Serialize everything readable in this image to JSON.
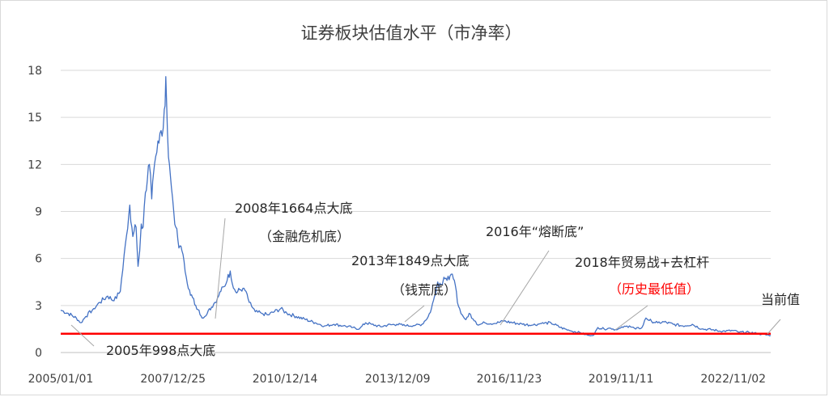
{
  "chart_data": {
    "type": "line",
    "title": "证券板块估值水平（市净率）",
    "xlabel": "",
    "ylabel": "",
    "ylim": [
      0,
      18
    ],
    "yticks": [
      "0",
      "3",
      "6",
      "9",
      "12",
      "15",
      "18"
    ],
    "x_tick_labels": [
      "2005/01/01",
      "2007/12/25",
      "2010/12/14",
      "2013/12/09",
      "2016/11/23",
      "2019/11/11",
      "2022/11/02"
    ],
    "x_range": [
      "2005/01/01",
      "2023/10/31"
    ],
    "grid": "horizontal",
    "line_color": "#4472c4",
    "baseline_color": "#ff0000",
    "baseline_value": 1.2,
    "series": [
      {
        "x": [
          "2005/01/01",
          "2005/03/15",
          "2005/06/01",
          "2005/07/15",
          "2005/09/01",
          "2005/11/15",
          "2006/01/15",
          "2006/04/01",
          "2006/06/01",
          "2006/08/01",
          "2006/10/01",
          "2006/11/01",
          "2006/12/01",
          "2007/01/01",
          "2007/01/20",
          "2007/02/05",
          "2007/02/20",
          "2007/03/10",
          "2007/04/01",
          "2007/04/20",
          "2007/05/10",
          "2007/06/01",
          "2007/06/20",
          "2007/07/10",
          "2007/08/01",
          "2007/08/20",
          "2007/09/10",
          "2007/10/01",
          "2007/10/16",
          "2007/11/01",
          "2007/11/20",
          "2007/12/10",
          "2008/01/01",
          "2008/01/20",
          "2008/02/10",
          "2008/03/01",
          "2008/03/20",
          "2008/04/10",
          "2008/05/01",
          "2008/06/01",
          "2008/07/01",
          "2008/08/01",
          "2008/09/01",
          "2008/10/01",
          "2008/10/28",
          "2008/12/01",
          "2009/01/01",
          "2009/02/01",
          "2009/03/01",
          "2009/04/01",
          "2009/05/01",
          "2009/06/01",
          "2009/07/01",
          "2009/08/01",
          "2009/09/01",
          "2009/10/01",
          "2009/11/01",
          "2009/12/01",
          "2010/01/01",
          "2010/03/01",
          "2010/05/01",
          "2010/07/01",
          "2010/09/01",
          "2010/11/01",
          "2011/01/01",
          "2011/04/01",
          "2011/07/01",
          "2011/10/01",
          "2012/01/01",
          "2012/04/01",
          "2012/07/01",
          "2012/10/01",
          "2012/12/03",
          "2013/02/01",
          "2013/04/01",
          "2013/06/25",
          "2013/09/01",
          "2013/12/01",
          "2014/03/01",
          "2014/06/01",
          "2014/08/01",
          "2014/10/01",
          "2014/11/01",
          "2014/12/01",
          "2015/01/01",
          "2015/02/01",
          "2015/03/01",
          "2015/04/01",
          "2015/05/01",
          "2015/06/01",
          "2015/06/20",
          "2015/07/10",
          "2015/08/01",
          "2015/08/26",
          "2015/10/01",
          "2015/11/01",
          "2016/01/01",
          "2016/01/28",
          "2016/04/01",
          "2016/07/01",
          "2016/10/01",
          "2017/01/01",
          "2017/04/01",
          "2017/07/01",
          "2017/10/01",
          "2018/01/01",
          "2018/04/01",
          "2018/07/01",
          "2018/10/19",
          "2018/12/01",
          "2019/01/04",
          "2019/02/25",
          "2019/04/01",
          "2019/06/01",
          "2019/08/01",
          "2019/10/01",
          "2019/12/01",
          "2020/02/01",
          "2020/04/01",
          "2020/06/01",
          "2020/07/10",
          "2020/09/01",
          "2020/11/01",
          "2021/01/01",
          "2021/04/01",
          "2021/07/01",
          "2021/10/01",
          "2022/01/01",
          "2022/04/26",
          "2022/07/01",
          "2022/10/31",
          "2023/01/01",
          "2023/04/01",
          "2023/07/01",
          "2023/08/01",
          "2023/10/31"
        ],
        "y": [
          2.7,
          2.5,
          2.2,
          1.9,
          2.3,
          2.8,
          3.2,
          3.6,
          3.3,
          3.9,
          7.5,
          9.4,
          7.4,
          8.0,
          5.5,
          6.5,
          8.2,
          8.0,
          10.2,
          11.0,
          12.0,
          9.8,
          11.5,
          12.5,
          13.5,
          14.0,
          13.8,
          15.5,
          17.6,
          14.0,
          12.0,
          10.5,
          9.0,
          8.0,
          7.2,
          6.8,
          6.5,
          5.8,
          4.8,
          4.0,
          3.5,
          3.0,
          2.7,
          2.2,
          2.3,
          2.7,
          2.9,
          3.2,
          3.5,
          3.9,
          4.2,
          4.6,
          5.2,
          4.1,
          3.8,
          4.0,
          4.1,
          3.9,
          3.2,
          2.6,
          2.5,
          2.4,
          2.6,
          2.8,
          2.5,
          2.3,
          2.1,
          1.9,
          1.7,
          1.8,
          1.7,
          1.6,
          1.5,
          1.9,
          1.8,
          1.65,
          1.75,
          1.8,
          1.7,
          1.75,
          1.8,
          2.3,
          2.8,
          3.6,
          4.5,
          4.3,
          4.8,
          4.6,
          4.9,
          4.7,
          4.3,
          3.2,
          2.8,
          2.4,
          2.1,
          2.5,
          2.0,
          1.75,
          1.9,
          1.85,
          2.0,
          1.9,
          1.8,
          1.75,
          1.85,
          1.9,
          1.6,
          1.4,
          1.25,
          1.15,
          1.1,
          1.15,
          1.6,
          1.5,
          1.55,
          1.45,
          1.6,
          1.7,
          1.5,
          1.6,
          2.2,
          2.0,
          1.9,
          1.95,
          1.8,
          1.7,
          1.8,
          1.5,
          1.45,
          1.35,
          1.4,
          1.3,
          1.3,
          1.2,
          1.15,
          1.1
        ]
      }
    ],
    "annotations": [
      {
        "label": "2005年998点大底",
        "color": "#262626"
      },
      {
        "label": "2008年1664点大底",
        "color": "#262626"
      },
      {
        "label": "（金融危机底）",
        "color": "#262626"
      },
      {
        "label": "2013年1849点大底",
        "color": "#262626"
      },
      {
        "label": "（钱荒底）",
        "color": "#262626"
      },
      {
        "label": "2016年“熔断底”",
        "color": "#262626"
      },
      {
        "label": "2018年贸易战+去杠杆",
        "color": "#262626"
      },
      {
        "label": "（历史最低值）",
        "color": "#ff0000"
      },
      {
        "label": "当前值",
        "color": "#262626"
      }
    ]
  }
}
